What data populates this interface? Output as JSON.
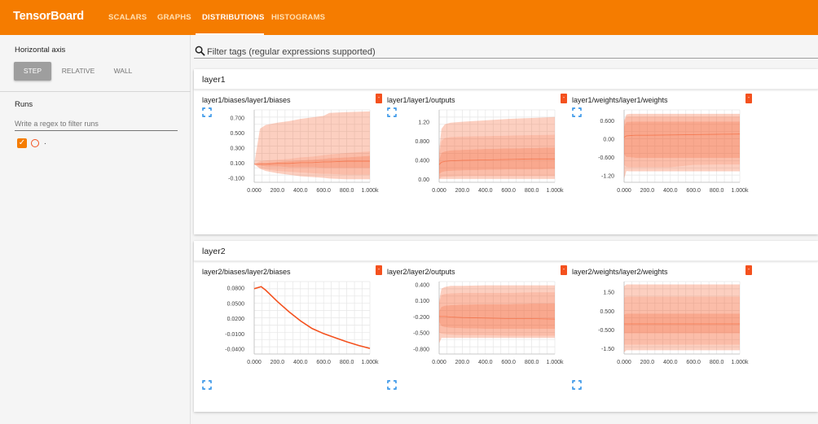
{
  "app": {
    "title": "TensorBoard"
  },
  "nav": {
    "tabs": [
      {
        "label": "SCALARS"
      },
      {
        "label": "GRAPHS"
      },
      {
        "label": "DISTRIBUTIONS",
        "active": true
      },
      {
        "label": "HISTOGRAMS"
      }
    ]
  },
  "sidebar": {
    "horizontal_axis_label": "Horizontal axis",
    "axis_options": [
      {
        "label": "STEP",
        "active": true
      },
      {
        "label": "RELATIVE"
      },
      {
        "label": "WALL"
      }
    ],
    "runs_label": "Runs",
    "regex_placeholder": "Write a regex to filter runs",
    "runs": [
      {
        "name": ".",
        "checked": true
      }
    ]
  },
  "filter": {
    "placeholder": "Filter tags (regular expressions supported)"
  },
  "colors": {
    "accent": "#f57c00",
    "band": "#f4511e",
    "line": "#f4511e"
  },
  "icons": {
    "search": "search-icon",
    "expand": "fullscreen-icon",
    "flag": "card-menu-icon"
  },
  "groups": [
    {
      "title": "layer1",
      "cards": [
        {
          "title": "layer1/biases/layer1/biases",
          "chart_data": {
            "type": "area",
            "xlim": [
              0,
              1000
            ],
            "ylim": [
              -0.16,
              0.8
            ],
            "x_ticks": [
              "0.000",
              "200.0",
              "400.0",
              "600.0",
              "800.0",
              "1.000k"
            ],
            "y_ticks": [
              {
                "v": 0.7,
                "l": "0.700"
              },
              {
                "v": 0.5,
                "l": "0.500"
              },
              {
                "v": 0.3,
                "l": "0.300"
              },
              {
                "v": 0.1,
                "l": "0.100"
              },
              {
                "v": -0.1,
                "l": "-0.100"
              }
            ],
            "x": [
              0,
              50,
              100,
              200,
              300,
              400,
              500,
              600,
              650,
              800,
              1000
            ],
            "series": [
              {
                "values": [
                  0.08,
                  0.55,
                  0.6,
                  0.63,
                  0.65,
                  0.68,
                  0.7,
                  0.72,
                  0.76,
                  0.77,
                  0.78
                ]
              },
              {
                "values": [
                  0.08,
                  0.12,
                  0.13,
                  0.14,
                  0.15,
                  0.17,
                  0.18,
                  0.2,
                  0.21,
                  0.23,
                  0.25
                ]
              },
              {
                "values": [
                  0.08,
                  0.1,
                  0.1,
                  0.11,
                  0.12,
                  0.13,
                  0.14,
                  0.15,
                  0.16,
                  0.17,
                  0.19
                ]
              },
              {
                "values": [
                  0.08,
                  0.08,
                  0.08,
                  0.09,
                  0.09,
                  0.1,
                  0.1,
                  0.11,
                  0.11,
                  0.12,
                  0.12
                ]
              },
              {
                "values": [
                  0.08,
                  0.06,
                  0.05,
                  0.05,
                  0.04,
                  0.04,
                  0.04,
                  0.03,
                  0.03,
                  0.03,
                  0.03
                ]
              },
              {
                "values": [
                  0.08,
                  0.03,
                  0.01,
                  -0.01,
                  -0.02,
                  -0.03,
                  -0.04,
                  -0.05,
                  -0.05,
                  -0.06,
                  -0.06
                ]
              },
              {
                "values": [
                  0.08,
                  0.02,
                  -0.01,
                  -0.04,
                  -0.06,
                  -0.08,
                  -0.09,
                  -0.1,
                  -0.11,
                  -0.12,
                  -0.12
                ]
              }
            ]
          }
        },
        {
          "title": "layer1/layer1/outputs",
          "chart_data": {
            "type": "area",
            "xlim": [
              0,
              1000
            ],
            "ylim": [
              -0.07,
              1.45
            ],
            "x_ticks": [
              "0.000",
              "200.0",
              "400.0",
              "600.0",
              "800.0",
              "1.000k"
            ],
            "y_ticks": [
              {
                "v": 1.2,
                "l": "1.20"
              },
              {
                "v": 0.8,
                "l": "0.800"
              },
              {
                "v": 0.4,
                "l": "0.400"
              },
              {
                "v": 0.0,
                "l": "0.00"
              }
            ],
            "x": [
              0,
              20,
              50,
              100,
              200,
              400,
              600,
              800,
              1000
            ],
            "series": [
              {
                "values": [
                  0.6,
                  1.05,
                  1.15,
                  1.18,
                  1.2,
                  1.23,
                  1.26,
                  1.28,
                  1.3
                ]
              },
              {
                "values": [
                  0.5,
                  0.8,
                  0.86,
                  0.88,
                  0.89,
                  0.9,
                  0.91,
                  0.92,
                  0.93
                ]
              },
              {
                "values": [
                  0.4,
                  0.55,
                  0.58,
                  0.6,
                  0.61,
                  0.63,
                  0.64,
                  0.65,
                  0.66
                ]
              },
              {
                "values": [
                  0.3,
                  0.35,
                  0.37,
                  0.38,
                  0.39,
                  0.4,
                  0.41,
                  0.42,
                  0.42
                ]
              },
              {
                "values": [
                  0.1,
                  0.14,
                  0.16,
                  0.17,
                  0.18,
                  0.19,
                  0.2,
                  0.2,
                  0.21
                ]
              },
              {
                "values": [
                  0.0,
                  0.04,
                  0.05,
                  0.05,
                  0.06,
                  0.06,
                  0.06,
                  0.06,
                  0.06
                ]
              },
              {
                "values": [
                  0.0,
                  0.0,
                  0.0,
                  0.0,
                  0.0,
                  0.0,
                  0.0,
                  0.0,
                  0.0
                ]
              }
            ]
          }
        },
        {
          "title": "layer1/weights/layer1/weights",
          "chart_data": {
            "type": "area",
            "xlim": [
              0,
              1000
            ],
            "ylim": [
              -1.42,
              0.95
            ],
            "x_ticks": [
              "0.000",
              "200.0",
              "400.0",
              "600.0",
              "800.0",
              "1.000k"
            ],
            "y_ticks": [
              {
                "v": 0.6,
                "l": "0.600"
              },
              {
                "v": 0.0,
                "l": "0.00"
              },
              {
                "v": -0.6,
                "l": "-0.600"
              },
              {
                "v": -1.2,
                "l": "-1.20"
              }
            ],
            "x": [
              0,
              20,
              50,
              100,
              200,
              400,
              600,
              800,
              1000
            ],
            "series": [
              {
                "values": [
                  0.6,
                  0.8,
                  0.82,
                  0.82,
                  0.82,
                  0.82,
                  0.82,
                  0.82,
                  0.82
                ]
              },
              {
                "values": [
                  0.55,
                  0.72,
                  0.73,
                  0.73,
                  0.73,
                  0.73,
                  0.73,
                  0.73,
                  0.73
                ]
              },
              {
                "values": [
                  0.4,
                  0.56,
                  0.56,
                  0.57,
                  0.57,
                  0.57,
                  0.57,
                  0.57,
                  0.57
                ]
              },
              {
                "values": [
                  0.05,
                  0.1,
                  0.11,
                  0.12,
                  0.12,
                  0.13,
                  0.14,
                  0.15,
                  0.16
                ]
              },
              {
                "values": [
                  -0.5,
                  -0.6,
                  -0.6,
                  -0.62,
                  -0.62,
                  -0.62,
                  -0.62,
                  -0.62,
                  -0.62
                ]
              },
              {
                "values": [
                  -0.85,
                  -0.92,
                  -0.93,
                  -0.93,
                  -0.93,
                  -0.93,
                  -0.85,
                  -0.84,
                  -0.84
                ]
              },
              {
                "values": [
                  -1.3,
                  -1.05,
                  -1.06,
                  -1.06,
                  -1.06,
                  -1.06,
                  -1.06,
                  -1.06,
                  -1.06
                ]
              }
            ]
          }
        }
      ]
    },
    {
      "title": "layer2",
      "cards": [
        {
          "title": "layer2/biases/layer2/biases",
          "chart_data": {
            "type": "line",
            "xlim": [
              0,
              1000
            ],
            "ylim": [
              -0.05,
              0.092
            ],
            "x_ticks": [
              "0.000",
              "200.0",
              "400.0",
              "600.0",
              "800.0",
              "1.000k"
            ],
            "y_ticks": [
              {
                "v": 0.08,
                "l": "0.0800"
              },
              {
                "v": 0.05,
                "l": "0.0500"
              },
              {
                "v": 0.02,
                "l": "0.0200"
              },
              {
                "v": -0.01,
                "l": "-0.0100"
              },
              {
                "v": -0.04,
                "l": "-0.0400"
              }
            ],
            "x": [
              0,
              60,
              100,
              200,
              300,
              400,
              500,
              600,
              700,
              800,
              900,
              1000
            ],
            "series": [
              {
                "values": [
                  0.078,
                  0.082,
                  0.075,
                  0.053,
                  0.033,
                  0.015,
                  0.0,
                  -0.01,
                  -0.018,
                  -0.026,
                  -0.033,
                  -0.039
                ]
              }
            ]
          }
        },
        {
          "title": "layer2/layer2/outputs",
          "chart_data": {
            "type": "area",
            "xlim": [
              0,
              1000
            ],
            "ylim": [
              -0.9,
              0.45
            ],
            "x_ticks": [
              "0.000",
              "200.0",
              "400.0",
              "600.0",
              "800.0",
              "1.000k"
            ],
            "y_ticks": [
              {
                "v": 0.4,
                "l": "0.400"
              },
              {
                "v": 0.1,
                "l": "0.100"
              },
              {
                "v": -0.2,
                "l": "-0.200"
              },
              {
                "v": -0.5,
                "l": "-0.500"
              },
              {
                "v": -0.8,
                "l": "-0.800"
              }
            ],
            "x": [
              0,
              20,
              50,
              100,
              200,
              400,
              600,
              800,
              1000
            ],
            "series": [
              {
                "values": [
                  0.1,
                  0.32,
                  0.35,
                  0.37,
                  0.37,
                  0.38,
                  0.38,
                  0.38,
                  0.38
                ]
              },
              {
                "values": [
                  0.05,
                  0.2,
                  0.22,
                  0.23,
                  0.24,
                  0.24,
                  0.24,
                  0.25,
                  0.25
                ]
              },
              {
                "values": [
                  -0.1,
                  -0.02,
                  0.0,
                  0.01,
                  0.02,
                  0.03,
                  0.03,
                  0.04,
                  0.04
                ]
              },
              {
                "values": [
                  -0.2,
                  -0.2,
                  -0.2,
                  -0.21,
                  -0.22,
                  -0.23,
                  -0.24,
                  -0.24,
                  -0.25
                ]
              },
              {
                "values": [
                  -0.3,
                  -0.38,
                  -0.4,
                  -0.41,
                  -0.42,
                  -0.43,
                  -0.43,
                  -0.43,
                  -0.43
                ]
              },
              {
                "values": [
                  -0.5,
                  -0.52,
                  -0.53,
                  -0.54,
                  -0.55,
                  -0.55,
                  -0.56,
                  -0.56,
                  -0.56
                ]
              },
              {
                "values": [
                  -0.7,
                  -0.6,
                  -0.6,
                  -0.6,
                  -0.6,
                  -0.6,
                  -0.6,
                  -0.6,
                  -0.6
                ]
              }
            ]
          }
        },
        {
          "title": "layer2/weights/layer2/weights",
          "chart_data": {
            "type": "area",
            "xlim": [
              0,
              1000
            ],
            "ylim": [
              -1.8,
              2.05
            ],
            "x_ticks": [
              "0.000",
              "200.0",
              "400.0",
              "600.0",
              "800.0",
              "1.000k"
            ],
            "y_ticks": [
              {
                "v": 1.5,
                "l": "1.50"
              },
              {
                "v": 0.5,
                "l": "0.500"
              },
              {
                "v": -0.5,
                "l": "-0.500"
              },
              {
                "v": -1.5,
                "l": "-1.50"
              }
            ],
            "x": [
              0,
              20,
              50,
              100,
              200,
              400,
              600,
              800,
              1000
            ],
            "series": [
              {
                "values": [
                  1.8,
                  1.9,
                  1.9,
                  1.9,
                  1.9,
                  1.9,
                  1.9,
                  1.9,
                  1.9
                ]
              },
              {
                "values": [
                  1.2,
                  1.25,
                  1.25,
                  1.25,
                  1.25,
                  1.25,
                  1.25,
                  1.25,
                  1.25
                ]
              },
              {
                "values": [
                  0.3,
                  0.35,
                  0.35,
                  0.35,
                  0.35,
                  0.35,
                  0.35,
                  0.35,
                  0.35
                ]
              },
              {
                "values": [
                  -0.2,
                  -0.2,
                  -0.2,
                  -0.2,
                  -0.2,
                  -0.2,
                  -0.2,
                  -0.2,
                  -0.2
                ]
              },
              {
                "values": [
                  -0.7,
                  -0.7,
                  -0.7,
                  -0.7,
                  -0.7,
                  -0.7,
                  -0.7,
                  -0.7,
                  -0.7
                ]
              },
              {
                "values": [
                  -1.3,
                  -1.3,
                  -1.3,
                  -1.3,
                  -1.3,
                  -1.3,
                  -1.3,
                  -1.3,
                  -1.3
                ]
              },
              {
                "values": [
                  -1.7,
                  -1.6,
                  -1.6,
                  -1.6,
                  -1.6,
                  -1.6,
                  -1.6,
                  -1.6,
                  -1.6
                ]
              }
            ]
          }
        }
      ]
    }
  ]
}
